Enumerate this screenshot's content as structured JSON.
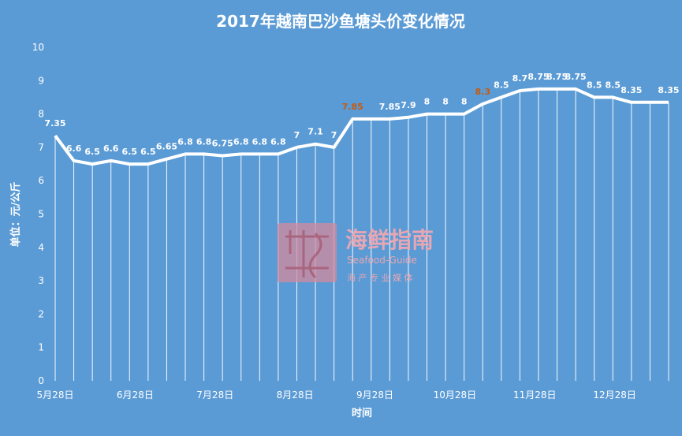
{
  "chart_data": {
    "type": "area",
    "title": "2017年越南巴沙鱼塘头价变化情况",
    "xlabel": "时间",
    "ylabel": "单位：元/公斤",
    "ylim": [
      0,
      10
    ],
    "yticks": [
      0,
      1,
      2,
      3,
      4,
      5,
      6,
      7,
      8,
      9,
      10
    ],
    "xticks": [
      "5月28日",
      "6月28日",
      "7月28日",
      "8月28日",
      "9月28日",
      "10月28日",
      "11月28日",
      "12月28日"
    ],
    "grid": false,
    "legend": "none",
    "colors": {
      "background": "#5b9bd5",
      "line": "#ffffff",
      "highlight_label": "#c55a11"
    },
    "values": [
      7.35,
      6.6,
      6.5,
      6.6,
      6.5,
      6.5,
      6.65,
      6.8,
      6.8,
      6.75,
      6.8,
      6.8,
      6.8,
      7,
      7.1,
      7,
      7.85,
      7.85,
      7.85,
      7.9,
      8,
      8,
      8,
      8.3,
      8.5,
      8.7,
      8.75,
      8.75,
      8.75,
      8.5,
      8.5,
      8.35,
      8.35,
      8.35
    ],
    "data_labels": [
      "7.35",
      "6.6",
      "6.5",
      "6.6",
      "6.5",
      "6.5",
      "6.65",
      "6.8",
      "6.8",
      "6.75",
      "6.8",
      "6.8",
      "6.8",
      "7",
      "7.1",
      "7",
      "7.85",
      "",
      "7.85",
      "7.9",
      "8",
      "8",
      "8",
      "8.3",
      "8.5",
      "8.7",
      "8.75",
      "8.75",
      "8.75",
      "8.5",
      "8.5",
      "8.35",
      "",
      "8.35"
    ],
    "highlighted_labels": [
      "7.85",
      "8.3"
    ]
  },
  "watermark": {
    "name": "海鲜指南",
    "name_en": "Seafood-Guide",
    "tagline": "海 产 专 业 媒 体"
  }
}
